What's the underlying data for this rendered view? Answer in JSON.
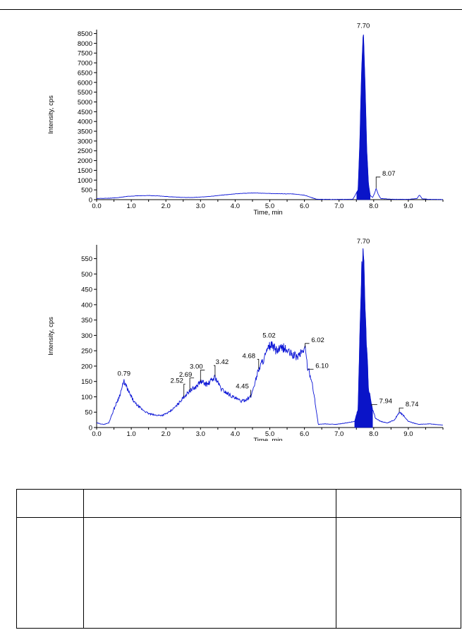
{
  "chart_data": [
    {
      "type": "line",
      "title": "",
      "xlabel": "Time, min",
      "ylabel": "Intensity, cps",
      "xlim": [
        0.0,
        10.0
      ],
      "ylim": [
        0,
        8700
      ],
      "x_ticks": [
        0.0,
        1.0,
        2.0,
        3.0,
        4.0,
        5.0,
        6.0,
        7.0,
        8.0,
        9.0
      ],
      "x_tick_labels": [
        "0.0",
        "1.0",
        "2.0",
        "3.0",
        "4.0",
        "5.0",
        "6.0",
        "7.0",
        "8.0",
        "9.0"
      ],
      "y_ticks": [
        0,
        500,
        1000,
        1500,
        2000,
        2500,
        3000,
        3500,
        4000,
        4500,
        5000,
        5500,
        6000,
        6500,
        7000,
        7500,
        8000,
        8500
      ],
      "y_tick_labels": [
        "0",
        "500",
        "1000",
        "1500",
        "2000",
        "2500",
        "3000",
        "3500",
        "4000",
        "4500",
        "5000",
        "5500",
        "6000",
        "6500",
        "7000",
        "7500",
        "8000",
        "8500"
      ],
      "color": "#0a14d6",
      "series": [
        {
          "x": [
            0.0,
            0.3,
            0.6,
            0.9,
            1.2,
            1.5,
            1.8,
            2.1,
            2.4,
            2.7,
            3.0,
            3.3,
            3.6,
            3.9,
            4.2,
            4.5,
            4.8,
            5.1,
            5.4,
            5.7,
            6.0,
            6.2,
            6.35,
            6.6,
            7.0,
            7.4,
            7.55,
            7.6,
            7.65,
            7.7,
            7.75,
            7.8,
            7.85,
            7.9,
            7.97,
            8.03,
            8.07,
            8.13,
            8.2,
            8.5,
            9.0,
            9.25,
            9.32,
            9.4,
            9.6,
            10.0
          ],
          "y": [
            60,
            70,
            100,
            170,
            200,
            210,
            190,
            150,
            120,
            110,
            130,
            170,
            230,
            280,
            320,
            340,
            330,
            310,
            300,
            290,
            230,
            110,
            20,
            15,
            12,
            20,
            500,
            3000,
            6500,
            8650,
            6000,
            2500,
            800,
            200,
            120,
            350,
            580,
            280,
            60,
            20,
            15,
            60,
            240,
            50,
            15,
            10
          ]
        }
      ],
      "filled_peaks": [
        {
          "from": 7.5,
          "to": 7.9
        }
      ],
      "peak_labels": [
        {
          "x": 7.7,
          "y": 8650,
          "label": "7.70"
        },
        {
          "x": 8.07,
          "y": 580,
          "label": "8.07"
        }
      ]
    },
    {
      "type": "line",
      "title": "",
      "xlabel": "Time, min",
      "ylabel": "Intensity, cps",
      "xlim": [
        0.0,
        10.0
      ],
      "ylim": [
        0,
        595
      ],
      "x_ticks": [
        0.0,
        1.0,
        2.0,
        3.0,
        4.0,
        5.0,
        6.0,
        7.0,
        8.0,
        9.0
      ],
      "x_tick_labels": [
        "0.0",
        "1.0",
        "2.0",
        "3.0",
        "4.0",
        "5.0",
        "6.0",
        "7.0",
        "8.0",
        "9.0"
      ],
      "y_ticks": [
        0,
        50,
        100,
        150,
        200,
        250,
        300,
        350,
        400,
        450,
        500,
        550
      ],
      "y_tick_labels": [
        "0",
        "50",
        "100",
        "150",
        "200",
        "250",
        "300",
        "350",
        "400",
        "450",
        "500",
        "550"
      ],
      "color": "#0a14d6",
      "series": [
        {
          "x": [
            0.0,
            0.2,
            0.35,
            0.5,
            0.65,
            0.79,
            0.95,
            1.1,
            1.3,
            1.5,
            1.7,
            1.9,
            2.1,
            2.3,
            2.52,
            2.69,
            2.85,
            3.0,
            3.2,
            3.42,
            3.6,
            3.8,
            4.0,
            4.2,
            4.45,
            4.68,
            4.85,
            5.02,
            5.2,
            5.4,
            5.6,
            5.8,
            6.02,
            6.1,
            6.2,
            6.3,
            6.4,
            6.6,
            6.9,
            7.2,
            7.45,
            7.55,
            7.6,
            7.65,
            7.7,
            7.73,
            7.78,
            7.85,
            7.94,
            8.05,
            8.2,
            8.4,
            8.6,
            8.74,
            8.85,
            9.0,
            9.3,
            9.6,
            10.0
          ],
          "y": [
            15,
            10,
            15,
            60,
            100,
            150,
            110,
            80,
            60,
            45,
            40,
            40,
            50,
            70,
            100,
            120,
            130,
            150,
            140,
            165,
            125,
            110,
            95,
            85,
            100,
            190,
            230,
            270,
            250,
            260,
            240,
            230,
            260,
            190,
            160,
            90,
            10,
            12,
            10,
            15,
            20,
            60,
            300,
            500,
            590,
            480,
            300,
            130,
            70,
            30,
            20,
            15,
            25,
            50,
            40,
            20,
            10,
            12,
            8
          ]
        }
      ],
      "filled_peaks": [
        {
          "from": 7.45,
          "to": 7.97
        }
      ],
      "peak_labels": [
        {
          "x": 0.79,
          "y": 150,
          "label": "0.79"
        },
        {
          "x": 2.52,
          "y": 100,
          "label": "2.52"
        },
        {
          "x": 2.69,
          "y": 120,
          "label": "2.69"
        },
        {
          "x": 3.0,
          "y": 150,
          "label": "3.00"
        },
        {
          "x": 3.42,
          "y": 165,
          "label": "3.42"
        },
        {
          "x": 4.45,
          "y": 100,
          "label": "4.45"
        },
        {
          "x": 4.68,
          "y": 190,
          "label": "4.68"
        },
        {
          "x": 5.02,
          "y": 270,
          "label": "5.02"
        },
        {
          "x": 6.02,
          "y": 260,
          "label": "6.02"
        },
        {
          "x": 6.1,
          "y": 190,
          "label": "6.10"
        },
        {
          "x": 7.7,
          "y": 590,
          "label": "7.70"
        },
        {
          "x": 7.94,
          "y": 70,
          "label": "7.94"
        },
        {
          "x": 8.74,
          "y": 50,
          "label": "8.74"
        }
      ]
    }
  ],
  "table": {
    "rows": [
      [
        "",
        "",
        ""
      ],
      [
        "",
        "",
        ""
      ]
    ]
  }
}
